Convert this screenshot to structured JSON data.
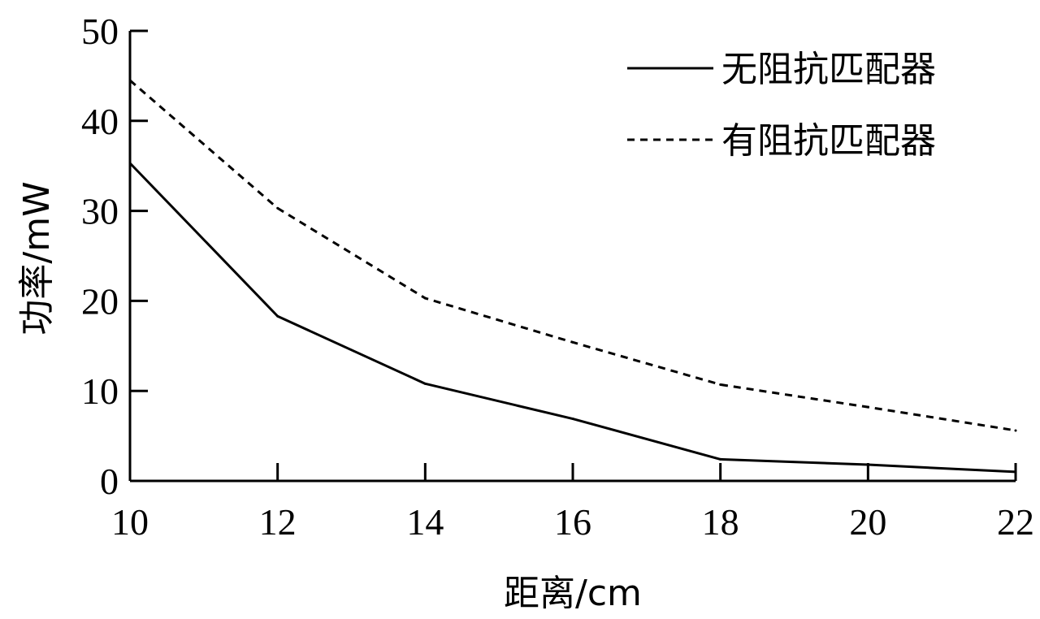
{
  "chart_data": {
    "type": "line",
    "title": "",
    "xlabel": "距离/cm",
    "ylabel": "功率/mW",
    "xlim": [
      10,
      22
    ],
    "ylim": [
      0,
      50
    ],
    "x_ticks": [
      10,
      12,
      14,
      16,
      18,
      20,
      22
    ],
    "y_ticks": [
      0,
      10,
      20,
      30,
      40,
      50
    ],
    "grid": false,
    "legend_position": "top-right",
    "series": [
      {
        "name": "无阻抗匹配器",
        "line_style": "solid",
        "color": "#000000",
        "x": [
          10,
          12,
          14,
          16,
          18,
          20,
          22
        ],
        "y": [
          35.3,
          18.3,
          10.8,
          6.9,
          2.4,
          1.8,
          1.0
        ]
      },
      {
        "name": "有阻抗匹配器",
        "line_style": "dashed",
        "color": "#000000",
        "x": [
          10,
          12,
          14,
          16,
          18,
          20,
          22
        ],
        "y": [
          44.5,
          30.3,
          20.3,
          15.4,
          10.7,
          8.2,
          5.6
        ]
      }
    ]
  }
}
